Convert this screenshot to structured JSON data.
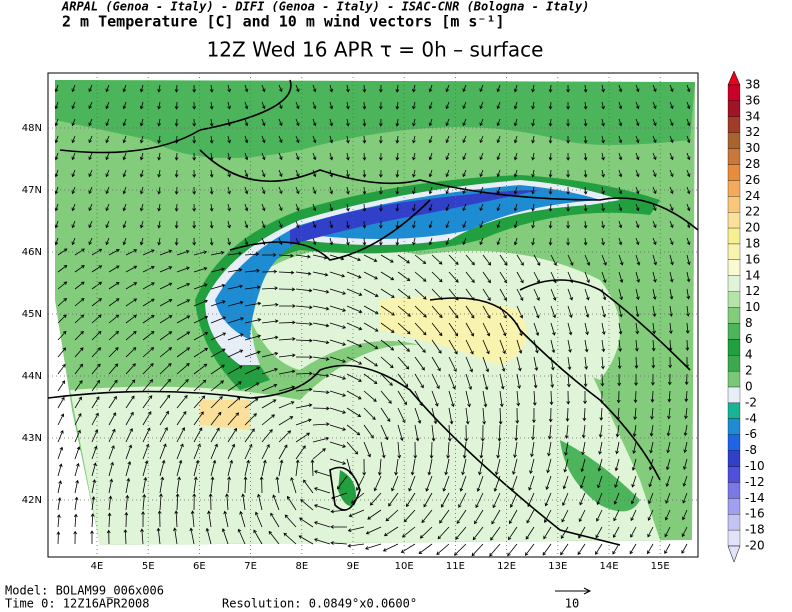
{
  "header": {
    "line1": "ARPAL (Genoa - Italy)  -  DIFI (Genoa - Italy)  -  ISAC-CNR (Bologna - Italy)",
    "line2": "2 m Temperature [C] and 10 m wind vectors [m s⁻¹]",
    "subtitle": "12Z Wed 16 APR  τ = 0h  –  surface"
  },
  "map": {
    "lat_labels": [
      "48N",
      "47N",
      "46N",
      "45N",
      "44N",
      "43N",
      "42N"
    ],
    "lon_labels": [
      "4E",
      "5E",
      "6E",
      "7E",
      "8E",
      "9E",
      "10E",
      "11E",
      "12E",
      "13E",
      "14E",
      "15E"
    ]
  },
  "colorbar": {
    "labels": [
      "38",
      "36",
      "34",
      "32",
      "30",
      "28",
      "26",
      "24",
      "22",
      "20",
      "18",
      "16",
      "14",
      "12",
      "10",
      "8",
      "6",
      "4",
      "2",
      "0",
      "-2",
      "-4",
      "-6",
      "-8",
      "-10",
      "-12",
      "-14",
      "-16",
      "-18",
      "-20"
    ],
    "colors": [
      "#e8001c",
      "#c8002a",
      "#a01426",
      "#a03c28",
      "#a8642e",
      "#c8783a",
      "#e88c3c",
      "#f4aa5a",
      "#f8c878",
      "#fae09a",
      "#f8f090",
      "#f8f4b0",
      "#fafad2",
      "#e0f4d8",
      "#b4e4a8",
      "#82cc7c",
      "#4cb45a",
      "#22a040",
      "#3caa4c",
      "#78c878",
      "#e8eef8",
      "#18b496",
      "#1e8cd2",
      "#2064e6",
      "#3040c8",
      "#5050dc",
      "#7878e6",
      "#a0a0ee",
      "#c4c4f4",
      "#e2e2fa"
    ]
  },
  "footer": {
    "model": "Model: BOLAM99_006x006",
    "time": "Time 0: 12Z16APR2008",
    "resolution": "Resolution: 0.0849°x0.0600°",
    "vector_scale": "10"
  }
}
